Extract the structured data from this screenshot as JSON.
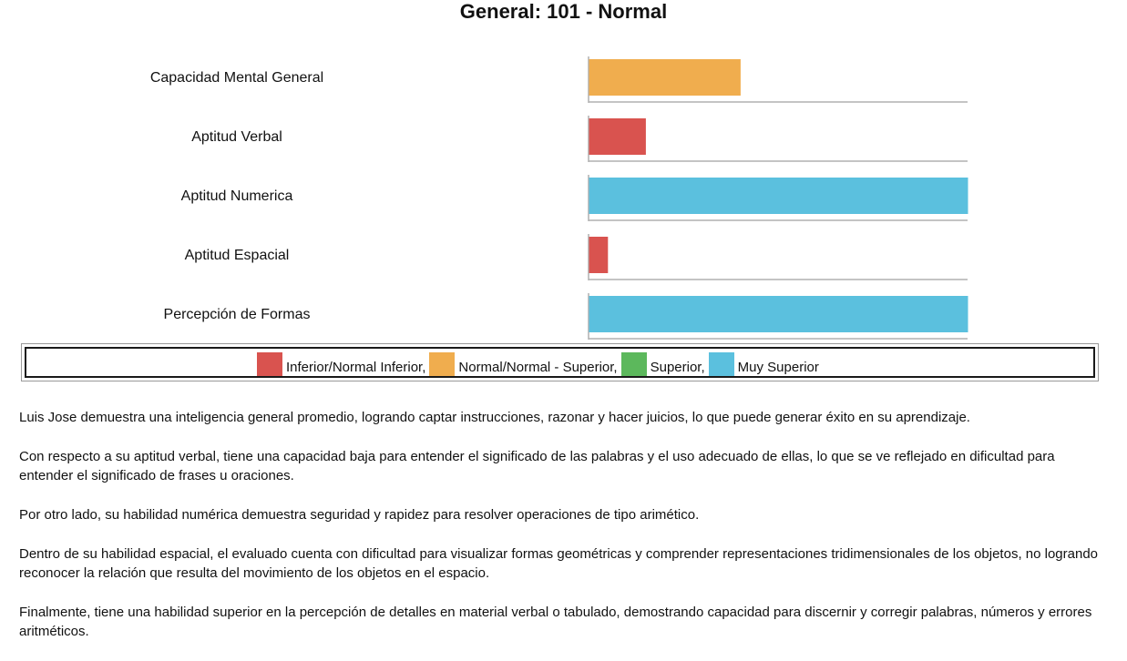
{
  "chart_data": {
    "type": "bar",
    "orientation": "horizontal",
    "title": "General: 101 - Normal",
    "categories": [
      "Capacidad Mental General",
      "Aptitud Verbal",
      "Aptitud Numerica",
      "Aptitud Espacial",
      "Percepción de Formas"
    ],
    "values": [
      40,
      15,
      100,
      5,
      100
    ],
    "bar_colors": [
      "#f0ad4e",
      "#d9534f",
      "#5bc0de",
      "#d9534f",
      "#5bc0de"
    ],
    "xlim": [
      0,
      100
    ],
    "legend_position": "bottom",
    "legend": [
      {
        "label": "Inferior/Normal Inferior,",
        "color": "#d9534f"
      },
      {
        "label": "Normal/Normal - Superior,",
        "color": "#f0ad4e"
      },
      {
        "label": "Superior,",
        "color": "#5cb85c"
      },
      {
        "label": "Muy Superior",
        "color": "#5bc0de"
      }
    ]
  },
  "paragraphs": [
    "Luis Jose demuestra una inteligencia general promedio, logrando captar instrucciones, razonar y hacer juicios, lo que puede generar éxito en su aprendizaje.",
    "Con respecto a su aptitud verbal, tiene una capacidad baja para entender el significado de las palabras y el uso adecuado de ellas, lo que se ve reflejado en dificultad para entender el significado de frases u oraciones.",
    "Por otro lado, su habilidad numérica demuestra seguridad y rapidez para resolver operaciones de tipo arimético.",
    "Dentro de su habilidad espacial, el evaluado cuenta con dificultad para visualizar formas geométricas y comprender representaciones tridimensionales de los objetos, no logrando reconocer la relación que resulta del movimiento de los objetos en el espacio.",
    "Finalmente, tiene una habilidad superior en la percepción de detalles en material verbal o tabulado, demostrando capacidad para discernir y corregir palabras, números y errores aritméticos."
  ]
}
